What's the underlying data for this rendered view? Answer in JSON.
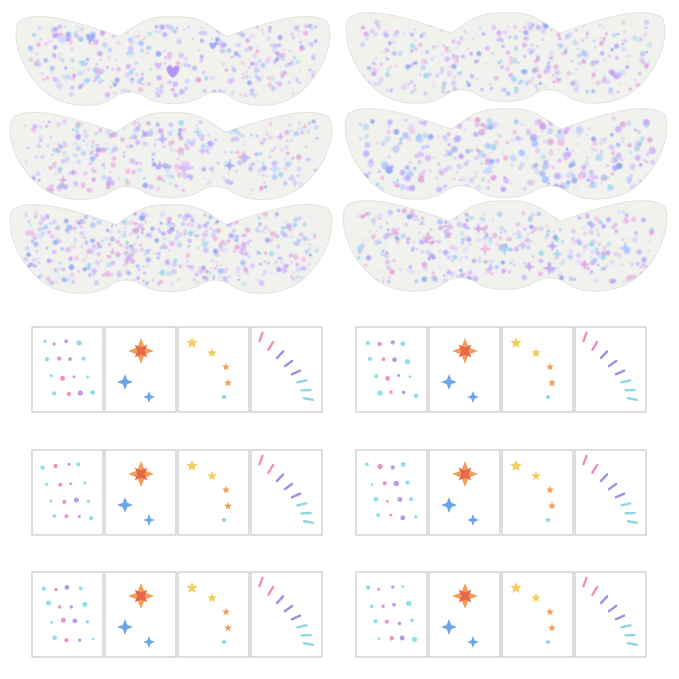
{
  "colors": {
    "background": "#ffffff",
    "stencil_fill": "#f1f1ee",
    "stencil_edge": "#e3e3df",
    "glitter": [
      "#b9a6ff",
      "#d6b3ff",
      "#a9c4ff",
      "#c9a0f0",
      "#f0b6e4",
      "#9fd8ef",
      "#e2a6d6",
      "#8fa7f0",
      "#cfd5ff"
    ],
    "sticker_frame": "#c9c9c9",
    "star_gold": "#f2cf5c",
    "star_orange": "#eea05a",
    "star_blue": "#6aa6e8",
    "star_red": "#e8664a",
    "dot_pink": "#ee93c6",
    "dot_cyan": "#8fdfe9",
    "dot_purple": "#b39ce9",
    "line_pink": "#ef8fb5",
    "line_purple": "#9d8fe6",
    "line_cyan": "#8fd6e4"
  },
  "stencils": {
    "count": 6,
    "icon": "wing-eye-stencil",
    "pattern_variants": [
      "hearts",
      "speckle",
      "stars",
      "dots",
      "speckle-dense",
      "sparkle"
    ]
  },
  "sticker_sheets": {
    "count": 6,
    "panels": [
      {
        "name": "dots-panel",
        "icon": "dot-cluster-icon"
      },
      {
        "name": "compass-star-panel",
        "icon": "compass-star-icon"
      },
      {
        "name": "gold-stars-panel",
        "icon": "star-icon"
      },
      {
        "name": "eyeliner-lines-panel",
        "icon": "dash-line-icon"
      }
    ]
  }
}
